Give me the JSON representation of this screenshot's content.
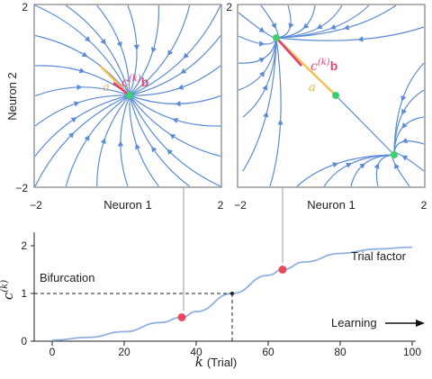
{
  "panels": [
    {
      "id": "left",
      "xlabel": "Neuron 1",
      "ylabel": "Neuron 2",
      "xticks": [
        "−2",
        "2"
      ],
      "yticks": [
        "2",
        "−2"
      ],
      "vector_label_text": "c",
      "vector_label_sup": "(k)",
      "vector_label_bold": "b",
      "a_label": "a"
    },
    {
      "id": "right",
      "xlabel": "Neuron 1",
      "xticks": [
        "−2",
        "2"
      ],
      "yticks": [
        "2"
      ],
      "vector_label_text": "c",
      "vector_label_sup": "(k)",
      "vector_label_bold": "b",
      "a_label": "a"
    }
  ],
  "bottom": {
    "xlabel_var": "k",
    "xlabel_unit": "(Trial)",
    "ylabel_var": "c",
    "ylabel_sup": "(k)",
    "bifurcation_label": "Bifurcation",
    "curve_label": "Trial factor",
    "learning_label": "Learning",
    "xticks": [
      "0",
      "20",
      "40",
      "60",
      "80",
      "100"
    ],
    "yticks": [
      "0",
      "1",
      "2"
    ]
  },
  "chart_data": {
    "type": "line",
    "xlabel": "k (Trial)",
    "ylabel": "c(k)",
    "xlim": [
      -5,
      102
    ],
    "ylim": [
      0,
      2.2
    ],
    "series": [
      {
        "name": "Trial factor",
        "x": [
          0,
          10,
          20,
          30,
          36,
          40,
          50,
          60,
          64,
          70,
          80,
          90,
          100
        ],
        "y": [
          0.02,
          0.08,
          0.2,
          0.39,
          0.5,
          0.62,
          1.0,
          1.38,
          1.5,
          1.66,
          1.84,
          1.93,
          1.97
        ]
      }
    ],
    "points": [
      {
        "x": 36,
        "y": 0.5
      },
      {
        "x": 64,
        "y": 1.5
      }
    ],
    "bifurcation": {
      "x": 50,
      "y": 1
    }
  },
  "colors": {
    "flow": "#5b8bd9",
    "curve": "#8fb0e0",
    "point": "#e84a5f",
    "vector": "#e03c79",
    "avec": "#f2c14e",
    "fixed": "#3ecf6e",
    "label_pink": "#d9487e"
  }
}
